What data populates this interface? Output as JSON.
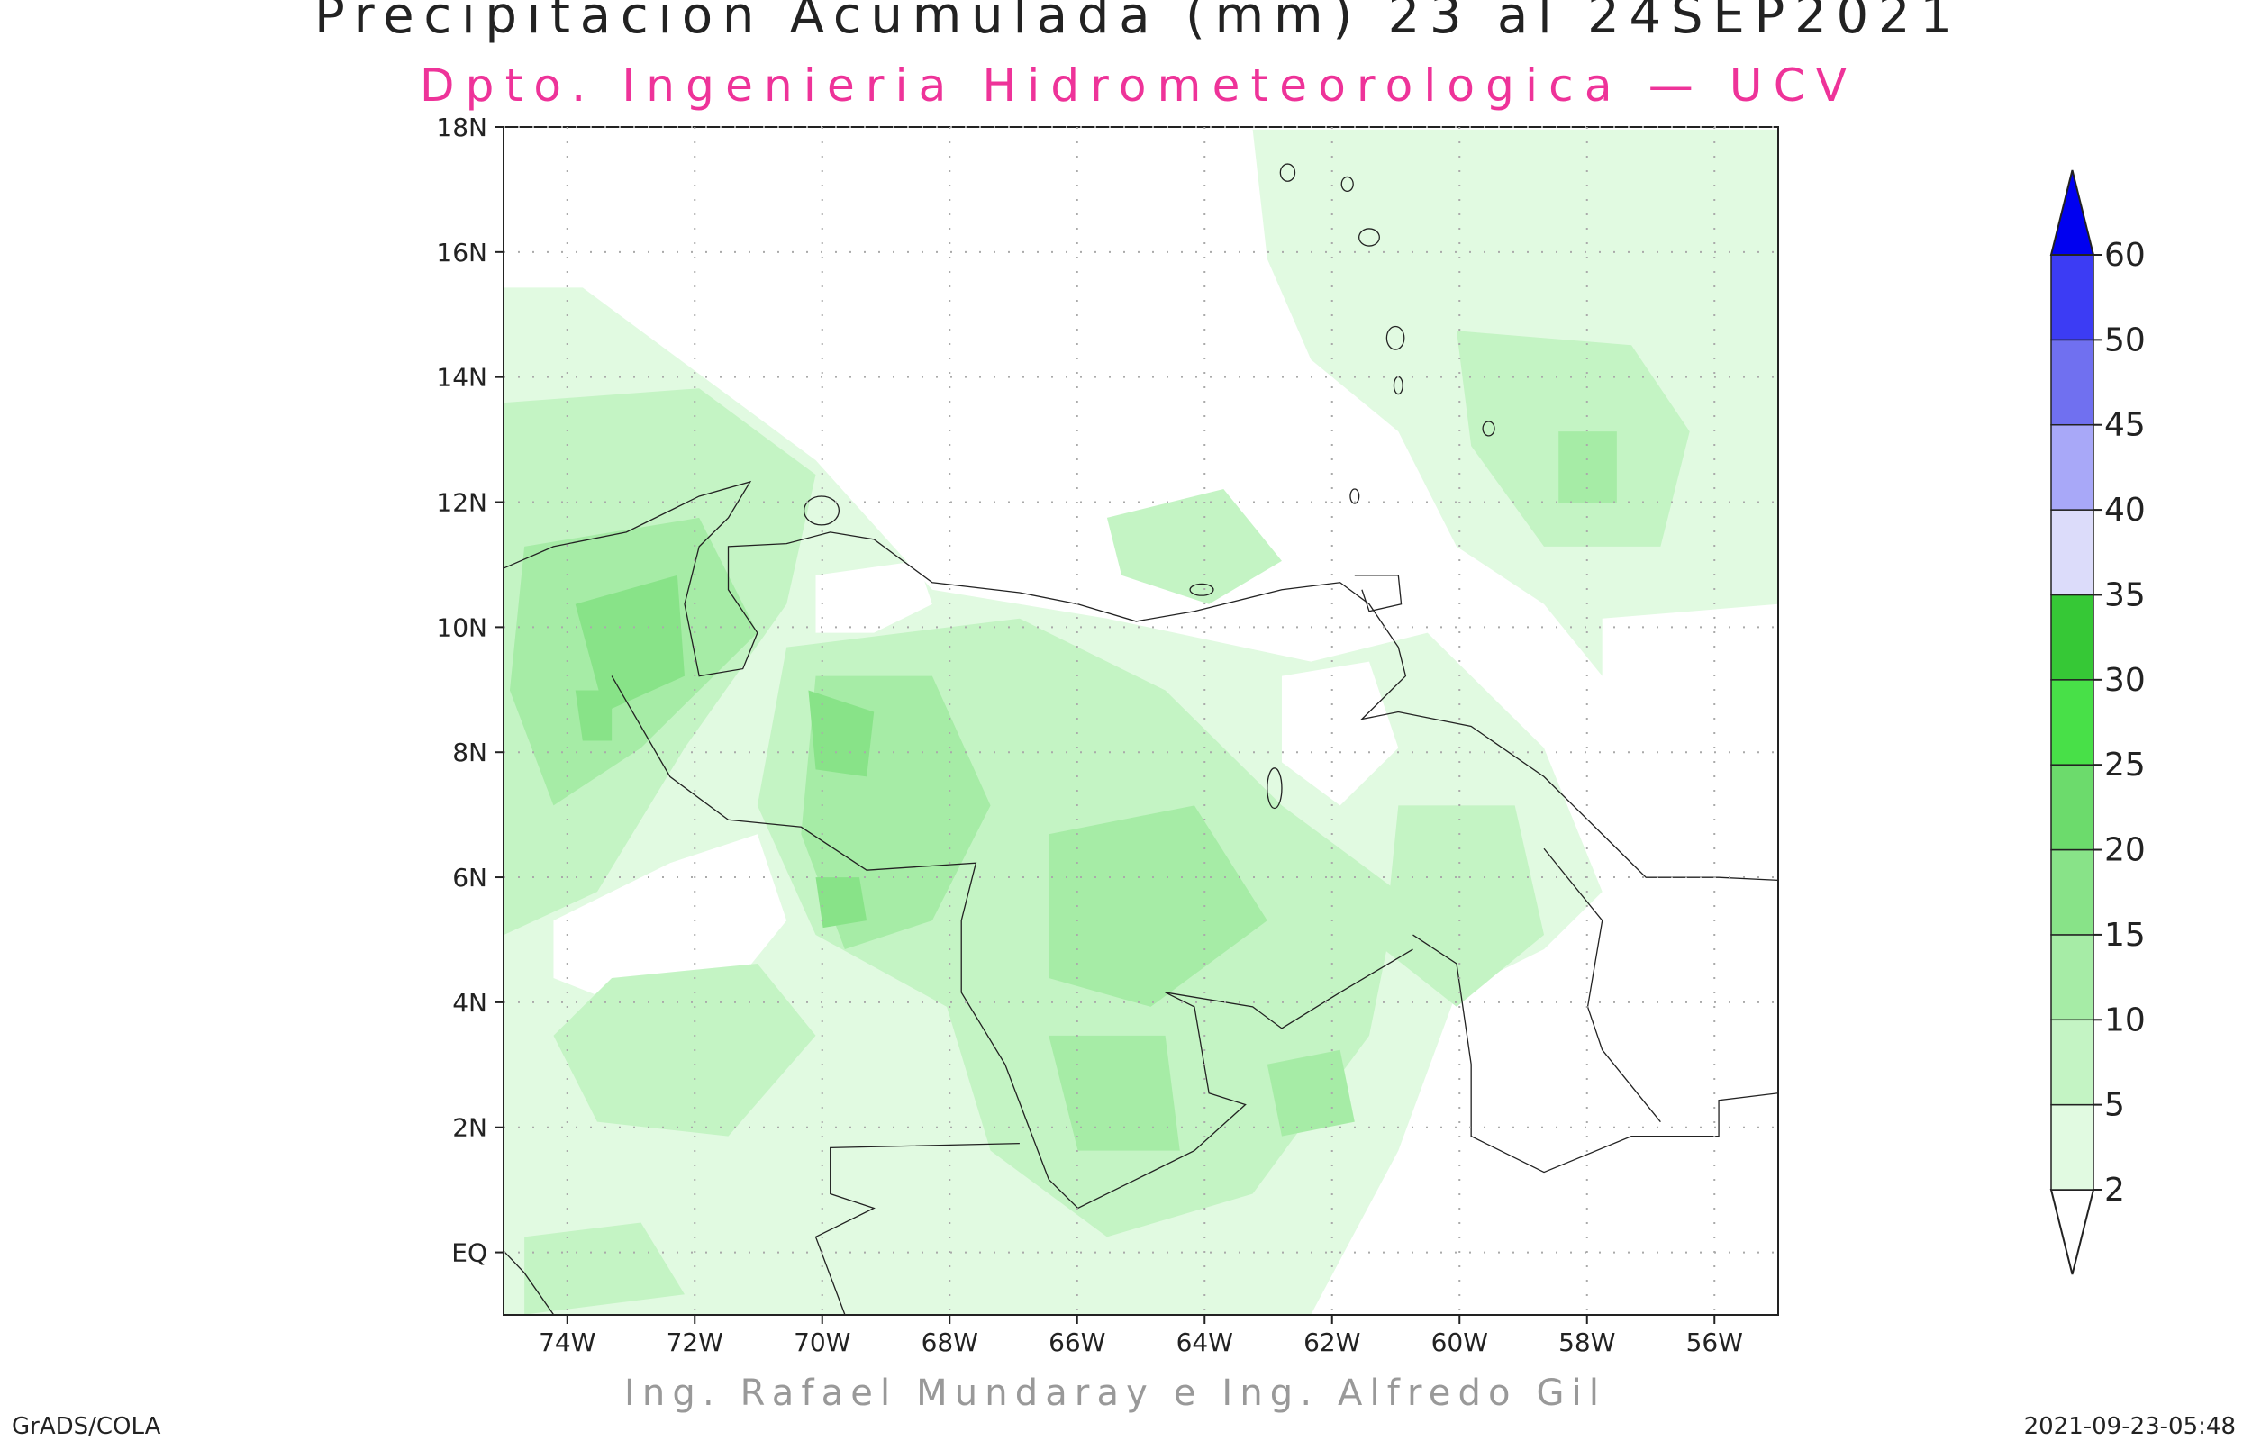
{
  "title": "Precipitacion Acumulada (mm) 23 al 24SEP2021",
  "subtitle": "Dpto. Ingenieria Hidrometeorologica — UCV",
  "credit": "Ing. Rafael Mundaray e Ing. Alfredo Gil",
  "footer_left": "GrADS/COLA",
  "timestamp": "2021-09-23-05:48",
  "map": {
    "xlim": [
      -75,
      -55
    ],
    "ylim": [
      -1,
      18
    ],
    "lon_ticks": [
      {
        "value": -74,
        "label": "74W"
      },
      {
        "value": -72,
        "label": "72W"
      },
      {
        "value": -70,
        "label": "70W"
      },
      {
        "value": -68,
        "label": "68W"
      },
      {
        "value": -66,
        "label": "66W"
      },
      {
        "value": -64,
        "label": "64W"
      },
      {
        "value": -62,
        "label": "62W"
      },
      {
        "value": -60,
        "label": "60W"
      },
      {
        "value": -58,
        "label": "58W"
      },
      {
        "value": -56,
        "label": "56W"
      }
    ],
    "lat_ticks": [
      {
        "value": 0,
        "label": "EQ"
      },
      {
        "value": 2,
        "label": "2N"
      },
      {
        "value": 4,
        "label": "4N"
      },
      {
        "value": 6,
        "label": "6N"
      },
      {
        "value": 8,
        "label": "8N"
      },
      {
        "value": 10,
        "label": "10N"
      },
      {
        "value": 12,
        "label": "12N"
      },
      {
        "value": 14,
        "label": "14N"
      },
      {
        "value": 16,
        "label": "16N"
      },
      {
        "value": 18,
        "label": "18N"
      }
    ]
  },
  "legend": {
    "levels": [
      2,
      5,
      10,
      15,
      20,
      25,
      30,
      35,
      40,
      45,
      50,
      60
    ],
    "colors": [
      "#ffffff",
      "#e1fae1",
      "#c4f4c4",
      "#a6eca6",
      "#88e388",
      "#6cdb6c",
      "#48e048",
      "#36c836",
      "#dcdcfa",
      "#a8a8f8",
      "#7070f0",
      "#3c3cf4",
      "#0000f0"
    ]
  }
}
